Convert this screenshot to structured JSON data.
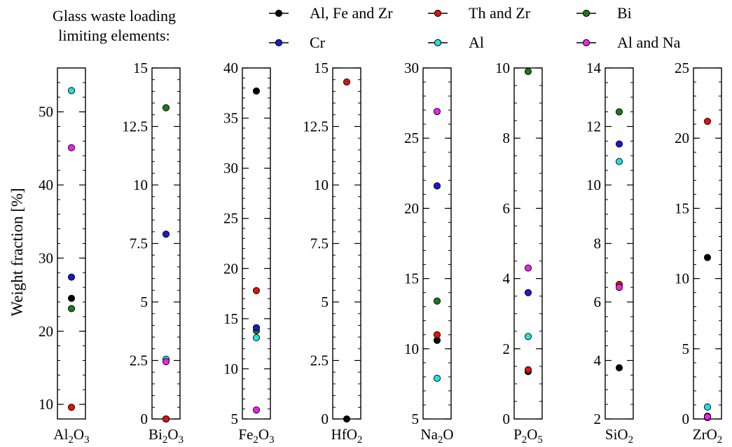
{
  "legend": {
    "title_line1": "Glass waste loading",
    "title_line2": "limiting elements:",
    "entries": [
      {
        "name": "Al, Fe and Zr",
        "color": "#000000"
      },
      {
        "name": "Th and Zr",
        "color": "#dd1111"
      },
      {
        "name": "Bi",
        "color": "#1a7a1a"
      },
      {
        "name": "Cr",
        "color": "#1a1acc"
      },
      {
        "name": "Al",
        "color": "#22e0e0"
      },
      {
        "name": "Al and Na",
        "color": "#ee22ee"
      }
    ]
  },
  "ylabel": "Weight fraction [%]",
  "chart_data": [
    {
      "type": "scatter",
      "xlabel": {
        "base": "Al",
        "sub1": "2",
        "mid": "O",
        "sub2": "3"
      },
      "ylim": [
        8,
        56
      ],
      "ticks": [
        {
          "v": 10,
          "label": "10"
        },
        {
          "v": 20,
          "label": "20"
        },
        {
          "v": 30,
          "label": "30"
        },
        {
          "v": 40,
          "label": "40"
        },
        {
          "v": 50,
          "label": "50"
        }
      ],
      "minor_step": 2,
      "points": [
        {
          "series": "Al, Fe and Zr",
          "y": 24.5
        },
        {
          "series": "Th and Zr",
          "y": 9.6
        },
        {
          "series": "Bi",
          "y": 23.1
        },
        {
          "series": "Cr",
          "y": 27.4
        },
        {
          "series": "Al",
          "y": 52.9
        },
        {
          "series": "Al and Na",
          "y": 45.1
        }
      ]
    },
    {
      "type": "scatter",
      "xlabel": {
        "base": "Bi",
        "sub1": "2",
        "mid": "O",
        "sub2": "3"
      },
      "ylim": [
        0,
        15
      ],
      "ticks": [
        {
          "v": 0,
          "label": "0"
        },
        {
          "v": 2.5,
          "label": "2.5"
        },
        {
          "v": 5,
          "label": "5"
        },
        {
          "v": 7.5,
          "label": "7.5"
        },
        {
          "v": 10,
          "label": "10"
        },
        {
          "v": 12.5,
          "label": "12.5"
        },
        {
          "v": 15,
          "label": "15"
        }
      ],
      "minor_step": 0.5,
      "points": [
        {
          "series": "Al, Fe and Zr",
          "y": 0.0
        },
        {
          "series": "Th and Zr",
          "y": 0.0
        },
        {
          "series": "Bi",
          "y": 13.3
        },
        {
          "series": "Cr",
          "y": 7.9
        },
        {
          "series": "Al",
          "y": 2.55
        },
        {
          "series": "Al and Na",
          "y": 2.45
        }
      ]
    },
    {
      "type": "scatter",
      "xlabel": {
        "base": "Fe",
        "sub1": "2",
        "mid": "O",
        "sub2": "3"
      },
      "ylim": [
        5,
        40
      ],
      "ticks": [
        {
          "v": 5,
          "label": "5"
        },
        {
          "v": 10,
          "label": "10"
        },
        {
          "v": 15,
          "label": "15"
        },
        {
          "v": 20,
          "label": "20"
        },
        {
          "v": 25,
          "label": "25"
        },
        {
          "v": 30,
          "label": "30"
        },
        {
          "v": 35,
          "label": "35"
        },
        {
          "v": 40,
          "label": "40"
        }
      ],
      "minor_step": 1,
      "points": [
        {
          "series": "Al, Fe and Zr",
          "y": 37.7
        },
        {
          "series": "Th and Zr",
          "y": 17.8
        },
        {
          "series": "Bi",
          "y": 13.8
        },
        {
          "series": "Cr",
          "y": 14.1
        },
        {
          "series": "Al",
          "y": 13.1
        },
        {
          "series": "Al and Na",
          "y": 5.9
        }
      ]
    },
    {
      "type": "scatter",
      "xlabel": {
        "base": "HfO",
        "sub1": "2",
        "mid": "",
        "sub2": ""
      },
      "ylim": [
        0,
        15
      ],
      "ticks": [
        {
          "v": 0,
          "label": "0"
        },
        {
          "v": 2.5,
          "label": "2.5"
        },
        {
          "v": 5,
          "label": "5"
        },
        {
          "v": 7.5,
          "label": "7.5"
        },
        {
          "v": 10,
          "label": "10"
        },
        {
          "v": 12.5,
          "label": "12.5"
        },
        {
          "v": 15,
          "label": "15"
        }
      ],
      "minor_step": 0.5,
      "points": [
        {
          "series": "Al, Fe and Zr",
          "y": 0.0
        },
        {
          "series": "Th and Zr",
          "y": 14.4
        }
      ]
    },
    {
      "type": "scatter",
      "xlabel": {
        "base": "Na",
        "sub1": "2",
        "mid": "O",
        "sub2": ""
      },
      "ylim": [
        5,
        30
      ],
      "ticks": [
        {
          "v": 5,
          "label": "5"
        },
        {
          "v": 10,
          "label": "10"
        },
        {
          "v": 15,
          "label": "15"
        },
        {
          "v": 20,
          "label": "20"
        },
        {
          "v": 25,
          "label": "25"
        },
        {
          "v": 30,
          "label": "30"
        }
      ],
      "minor_step": 1,
      "points": [
        {
          "series": "Al, Fe and Zr",
          "y": 10.6
        },
        {
          "series": "Th and Zr",
          "y": 11.0
        },
        {
          "series": "Bi",
          "y": 13.4
        },
        {
          "series": "Cr",
          "y": 21.6
        },
        {
          "series": "Al",
          "y": 7.9
        },
        {
          "series": "Al and Na",
          "y": 26.9
        }
      ]
    },
    {
      "type": "scatter",
      "xlabel": {
        "base": "P",
        "sub1": "2",
        "mid": "O",
        "sub2": "5"
      },
      "ylim": [
        0,
        10
      ],
      "ticks": [
        {
          "v": 0,
          "label": "0"
        },
        {
          "v": 2,
          "label": "2"
        },
        {
          "v": 4,
          "label": "4"
        },
        {
          "v": 6,
          "label": "6"
        },
        {
          "v": 8,
          "label": "8"
        },
        {
          "v": 10,
          "label": "10"
        }
      ],
      "minor_step": 0.5,
      "points": [
        {
          "series": "Al, Fe and Zr",
          "y": 1.35
        },
        {
          "series": "Th and Zr",
          "y": 1.4
        },
        {
          "series": "Bi",
          "y": 9.9
        },
        {
          "series": "Cr",
          "y": 3.6
        },
        {
          "series": "Al",
          "y": 2.35
        },
        {
          "series": "Al and Na",
          "y": 4.3
        }
      ]
    },
    {
      "type": "scatter",
      "xlabel": {
        "base": "SiO",
        "sub1": "2",
        "mid": "",
        "sub2": ""
      },
      "ylim": [
        2,
        14
      ],
      "ticks": [
        {
          "v": 2,
          "label": "2"
        },
        {
          "v": 4,
          "label": "4"
        },
        {
          "v": 6,
          "label": "6"
        },
        {
          "v": 8,
          "label": "8"
        },
        {
          "v": 10,
          "label": "10"
        },
        {
          "v": 12,
          "label": "12"
        },
        {
          "v": 14,
          "label": "14"
        }
      ],
      "minor_step": 0.5,
      "points": [
        {
          "series": "Al, Fe and Zr",
          "y": 3.75
        },
        {
          "series": "Th and Zr",
          "y": 6.6
        },
        {
          "series": "Bi",
          "y": 12.5
        },
        {
          "series": "Cr",
          "y": 11.4
        },
        {
          "series": "Al",
          "y": 10.8
        },
        {
          "series": "Al and Na",
          "y": 6.5
        }
      ]
    },
    {
      "type": "scatter",
      "xlabel": {
        "base": "ZrO",
        "sub1": "2",
        "mid": "",
        "sub2": ""
      },
      "ylim": [
        0,
        25
      ],
      "ticks": [
        {
          "v": 0,
          "label": "0"
        },
        {
          "v": 5,
          "label": "5"
        },
        {
          "v": 10,
          "label": "10"
        },
        {
          "v": 15,
          "label": "15"
        },
        {
          "v": 20,
          "label": "20"
        },
        {
          "v": 25,
          "label": "25"
        }
      ],
      "minor_step": 1,
      "points": [
        {
          "series": "Al, Fe and Zr",
          "y": 11.5
        },
        {
          "series": "Th and Zr",
          "y": 21.2
        },
        {
          "series": "Bi",
          "y": 0.1
        },
        {
          "series": "Cr",
          "y": 0.2
        },
        {
          "series": "Al",
          "y": 0.85
        },
        {
          "series": "Al and Na",
          "y": 0.15
        }
      ]
    }
  ]
}
